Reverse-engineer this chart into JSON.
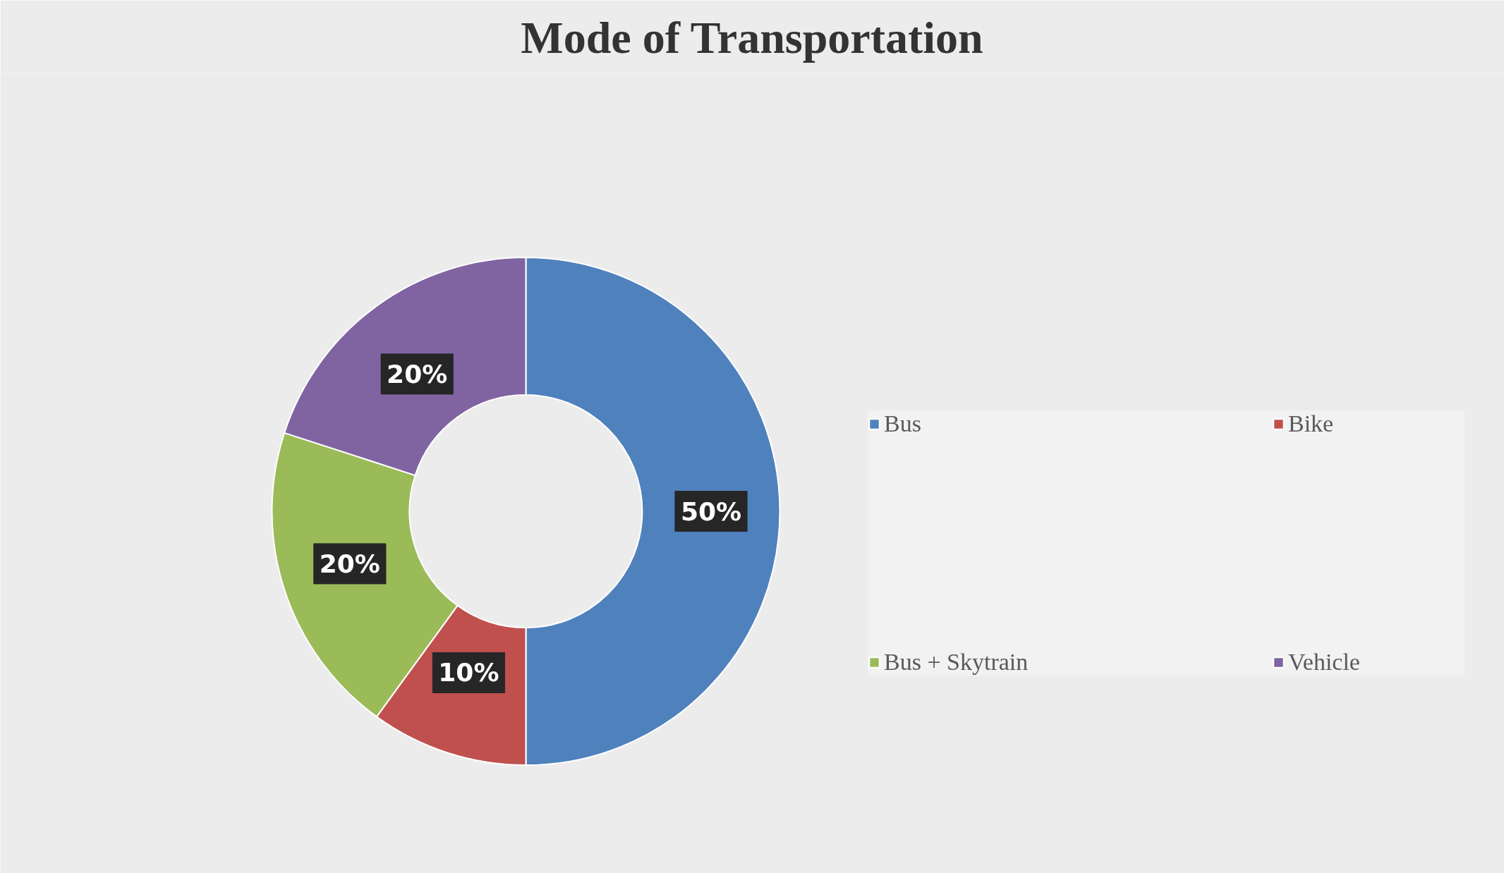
{
  "chart_data": {
    "type": "donut",
    "title": "Mode of Transportation",
    "categories": [
      "Bus",
      "Bike",
      "Bus + Skytrain",
      "Vehicle"
    ],
    "values": [
      50,
      10,
      20,
      20
    ],
    "colors": [
      "#4f81bd",
      "#c0504d",
      "#9bbb59",
      "#8064a2"
    ],
    "value_labels": [
      "50%",
      "10%",
      "20%",
      "20%"
    ],
    "legend": "right"
  }
}
